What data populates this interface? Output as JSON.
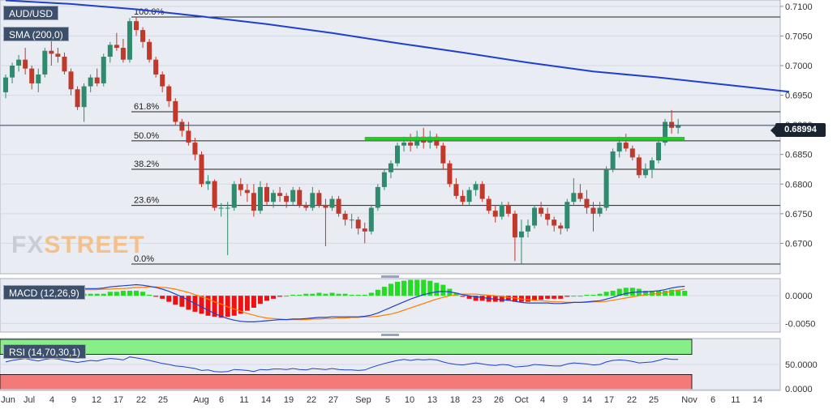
{
  "symbol": "AUD/USD",
  "indicator_label": "SMA (200,0)",
  "macd_label": "MACD (12,26,9)",
  "rsi_label": "RSI (14,70,30,1)",
  "current_price": "0.68994",
  "logo": {
    "prefix": "FX",
    "accent": "STREET"
  },
  "colors": {
    "up": "#2e8b6e",
    "down": "#c0392b",
    "sma": "#1f3fcf",
    "support": "#22cc22",
    "hist_up": "#22dd22",
    "hist_down": "#ee1111",
    "macd": "#1f3fcf",
    "signal": "#ff7f00",
    "rsi": "#1f3fcf",
    "overbought": "#88ee88",
    "oversold": "#f47a7a"
  },
  "chart_data": [
    {
      "type": "candlestick",
      "panel": "price",
      "y_ticks": [
        0.71,
        0.705,
        0.7,
        0.695,
        0.69,
        0.685,
        0.68,
        0.675,
        0.67
      ],
      "y_tick_labels": [
        "0.7100",
        "0.7050",
        "0.7000",
        "0.6950",
        "0.6900",
        "0.6850",
        "0.6800",
        "0.6750",
        "0.6700"
      ],
      "ylim": [
        0.665,
        0.7108
      ],
      "x_tick_labels": [
        "Jun",
        "Jul",
        "4",
        "9",
        "12",
        "17",
        "22",
        "25",
        "Aug",
        "6",
        "11",
        "14",
        "19",
        "22",
        "27",
        "Sep",
        "5",
        "10",
        "13",
        "18",
        "23",
        "26",
        "Oct",
        "4",
        "9",
        "14",
        "17",
        "22",
        "25",
        "Nov",
        "6",
        "11",
        "14"
      ],
      "candles": [
        [
          0.6955,
          0.6985,
          0.6945,
          0.698
        ],
        [
          0.698,
          0.7005,
          0.697,
          0.7
        ],
        [
          0.7,
          0.7018,
          0.699,
          0.701
        ],
        [
          0.701,
          0.703,
          0.6985,
          0.6995
        ],
        [
          0.6995,
          0.7,
          0.696,
          0.697
        ],
        [
          0.697,
          0.6995,
          0.6955,
          0.6985
        ],
        [
          0.6985,
          0.703,
          0.698,
          0.7025
        ],
        [
          0.7025,
          0.705,
          0.7,
          0.702
        ],
        [
          0.702,
          0.703,
          0.7005,
          0.7015
        ],
        [
          0.7015,
          0.7022,
          0.6985,
          0.699
        ],
        [
          0.699,
          0.6995,
          0.695,
          0.696
        ],
        [
          0.696,
          0.6965,
          0.6925,
          0.693
        ],
        [
          0.693,
          0.697,
          0.6905,
          0.6965
        ],
        [
          0.6965,
          0.6985,
          0.6955,
          0.698
        ],
        [
          0.698,
          0.6995,
          0.6965,
          0.697
        ],
        [
          0.697,
          0.702,
          0.6965,
          0.7015
        ],
        [
          0.7015,
          0.704,
          0.7005,
          0.7035
        ],
        [
          0.7035,
          0.7055,
          0.7025,
          0.703
        ],
        [
          0.703,
          0.7045,
          0.7005,
          0.701
        ],
        [
          0.701,
          0.708,
          0.7005,
          0.7075
        ],
        [
          0.7075,
          0.7082,
          0.705,
          0.706
        ],
        [
          0.706,
          0.7065,
          0.703,
          0.704
        ],
        [
          0.704,
          0.7045,
          0.7005,
          0.701
        ],
        [
          0.701,
          0.7015,
          0.698,
          0.6985
        ],
        [
          0.6985,
          0.699,
          0.6955,
          0.6965
        ],
        [
          0.6965,
          0.6968,
          0.693,
          0.694
        ],
        [
          0.694,
          0.6945,
          0.69,
          0.6905
        ],
        [
          0.6905,
          0.691,
          0.688,
          0.689
        ],
        [
          0.689,
          0.6905,
          0.6865,
          0.687
        ],
        [
          0.687,
          0.6878,
          0.684,
          0.685
        ],
        [
          0.685,
          0.6855,
          0.6795,
          0.68
        ],
        [
          0.68,
          0.6815,
          0.679,
          0.6805
        ],
        [
          0.6805,
          0.6808,
          0.6755,
          0.676
        ],
        [
          0.676,
          0.6768,
          0.6745,
          0.676
        ],
        [
          0.676,
          0.677,
          0.668,
          0.676
        ],
        [
          0.676,
          0.6805,
          0.6755,
          0.68
        ],
        [
          0.68,
          0.681,
          0.678,
          0.679
        ],
        [
          0.679,
          0.68,
          0.677,
          0.6785
        ],
        [
          0.6785,
          0.68,
          0.6745,
          0.6755
        ],
        [
          0.6755,
          0.6805,
          0.675,
          0.6795
        ],
        [
          0.6795,
          0.6802,
          0.6765,
          0.677
        ],
        [
          0.677,
          0.679,
          0.676,
          0.6785
        ],
        [
          0.6785,
          0.6795,
          0.677,
          0.678
        ],
        [
          0.678,
          0.6785,
          0.676,
          0.677
        ],
        [
          0.677,
          0.6795,
          0.6765,
          0.679
        ],
        [
          0.679,
          0.6795,
          0.676,
          0.6765
        ],
        [
          0.6765,
          0.677,
          0.6755,
          0.676
        ],
        [
          0.676,
          0.6795,
          0.6755,
          0.6785
        ],
        [
          0.6785,
          0.679,
          0.676,
          0.6765
        ],
        [
          0.6765,
          0.6775,
          0.6695,
          0.676
        ],
        [
          0.676,
          0.678,
          0.6755,
          0.6775
        ],
        [
          0.6775,
          0.678,
          0.6745,
          0.675
        ],
        [
          0.675,
          0.6755,
          0.673,
          0.674
        ],
        [
          0.674,
          0.675,
          0.6725,
          0.674
        ],
        [
          0.674,
          0.6745,
          0.6715,
          0.6725
        ],
        [
          0.6725,
          0.6735,
          0.67,
          0.672
        ],
        [
          0.672,
          0.6765,
          0.6715,
          0.676
        ],
        [
          0.676,
          0.68,
          0.6755,
          0.6795
        ],
        [
          0.6795,
          0.6825,
          0.679,
          0.682
        ],
        [
          0.682,
          0.684,
          0.681,
          0.6835
        ],
        [
          0.6835,
          0.687,
          0.683,
          0.6865
        ],
        [
          0.6865,
          0.688,
          0.6855,
          0.687
        ],
        [
          0.687,
          0.6885,
          0.6855,
          0.6865
        ],
        [
          0.6865,
          0.689,
          0.686,
          0.688
        ],
        [
          0.688,
          0.6895,
          0.686,
          0.687
        ],
        [
          0.687,
          0.689,
          0.686,
          0.688
        ],
        [
          0.688,
          0.6885,
          0.686,
          0.6865
        ],
        [
          0.6865,
          0.687,
          0.6825,
          0.6835
        ],
        [
          0.6835,
          0.684,
          0.6795,
          0.68
        ],
        [
          0.68,
          0.681,
          0.6775,
          0.678
        ],
        [
          0.678,
          0.679,
          0.6765,
          0.677
        ],
        [
          0.677,
          0.6795,
          0.6765,
          0.679
        ],
        [
          0.679,
          0.6805,
          0.678,
          0.68
        ],
        [
          0.68,
          0.6805,
          0.677,
          0.6775
        ],
        [
          0.6775,
          0.678,
          0.675,
          0.6755
        ],
        [
          0.6755,
          0.6765,
          0.6735,
          0.6745
        ],
        [
          0.6745,
          0.677,
          0.674,
          0.6765
        ],
        [
          0.6765,
          0.677,
          0.6745,
          0.675
        ],
        [
          0.675,
          0.6755,
          0.667,
          0.671
        ],
        [
          0.671,
          0.674,
          0.6665,
          0.672
        ],
        [
          0.672,
          0.674,
          0.671,
          0.673
        ],
        [
          0.673,
          0.6765,
          0.6725,
          0.676
        ],
        [
          0.676,
          0.677,
          0.6745,
          0.675
        ],
        [
          0.675,
          0.676,
          0.673,
          0.674
        ],
        [
          0.674,
          0.6745,
          0.672,
          0.673
        ],
        [
          0.673,
          0.6735,
          0.6715,
          0.6725
        ],
        [
          0.6725,
          0.6775,
          0.672,
          0.677
        ],
        [
          0.677,
          0.681,
          0.6765,
          0.6785
        ],
        [
          0.6785,
          0.68,
          0.677,
          0.6775
        ],
        [
          0.6775,
          0.679,
          0.675,
          0.676
        ],
        [
          0.676,
          0.677,
          0.672,
          0.675
        ],
        [
          0.675,
          0.677,
          0.6745,
          0.676
        ],
        [
          0.676,
          0.683,
          0.6755,
          0.6825
        ],
        [
          0.6825,
          0.686,
          0.682,
          0.6855
        ],
        [
          0.6855,
          0.688,
          0.6845,
          0.687
        ],
        [
          0.687,
          0.6885,
          0.6855,
          0.686
        ],
        [
          0.686,
          0.6865,
          0.684,
          0.6845
        ],
        [
          0.6845,
          0.685,
          0.681,
          0.6815
        ],
        [
          0.6815,
          0.6835,
          0.681,
          0.6825
        ],
        [
          0.6825,
          0.6845,
          0.681,
          0.684
        ],
        [
          0.684,
          0.6875,
          0.6835,
          0.687
        ],
        [
          0.687,
          0.691,
          0.6865,
          0.6905
        ],
        [
          0.6905,
          0.6925,
          0.6885,
          0.6895
        ],
        [
          0.6895,
          0.691,
          0.6885,
          0.6899
        ]
      ],
      "sma200": {
        "name": "SMA (200,0)",
        "points": [
          [
            0,
            0.711
          ],
          [
            10,
            0.7104
          ],
          [
            20,
            0.7095
          ],
          [
            30,
            0.7083
          ],
          [
            40,
            0.707
          ],
          [
            50,
            0.7055
          ],
          [
            60,
            0.7038
          ],
          [
            70,
            0.7022
          ],
          [
            80,
            0.7005
          ],
          [
            90,
            0.699
          ],
          [
            100,
            0.698
          ],
          [
            110,
            0.6968
          ],
          [
            115,
            0.6962
          ],
          [
            120,
            0.6956
          ]
        ]
      },
      "fibonacci": [
        {
          "label": "100.0%",
          "value": 0.7082
        },
        {
          "label": "61.8%",
          "value": 0.6922
        },
        {
          "label": "50.0%",
          "value": 0.6873
        },
        {
          "label": "38.2%",
          "value": 0.6825
        },
        {
          "label": "23.6%",
          "value": 0.6764
        },
        {
          "label": "0.0%",
          "value": 0.6665
        }
      ],
      "support_line": {
        "value": 0.6877,
        "from_index": 55,
        "to_index": 104
      }
    },
    {
      "type": "macd",
      "panel": "macd",
      "label": "MACD (12,26,9)",
      "y_ticks": [
        0.0,
        -0.005
      ],
      "y_tick_labels": [
        "0.0000",
        "-0.0050"
      ],
      "ylim": [
        -0.0064,
        0.0028
      ],
      "macd": [
        0.0003,
        0.0005,
        0.0007,
        0.0009,
        0.001,
        0.0011,
        0.0013,
        0.0014,
        0.0015,
        0.0015,
        0.0014,
        0.0013,
        0.0013,
        0.0013,
        0.0013,
        0.0014,
        0.0016,
        0.0017,
        0.0018,
        0.0019,
        0.002,
        0.0019,
        0.0017,
        0.0015,
        0.0012,
        0.0008,
        0.0003,
        -0.0002,
        -0.0008,
        -0.0014,
        -0.002,
        -0.0026,
        -0.0032,
        -0.0037,
        -0.0041,
        -0.0044,
        -0.0046,
        -0.0047,
        -0.0047,
        -0.0046,
        -0.0045,
        -0.0044,
        -0.0043,
        -0.0043,
        -0.0042,
        -0.0042,
        -0.0041,
        -0.004,
        -0.0039,
        -0.0039,
        -0.0038,
        -0.0038,
        -0.0038,
        -0.0038,
        -0.0038,
        -0.0037,
        -0.0035,
        -0.0031,
        -0.0026,
        -0.0021,
        -0.0016,
        -0.0011,
        -0.0006,
        -0.0002,
        0.0002,
        0.0005,
        0.0007,
        0.0008,
        0.0007,
        0.0005,
        0.0002,
        0.0,
        -0.0002,
        -0.0003,
        -0.0005,
        -0.0006,
        -0.0007,
        -0.0008,
        -0.001,
        -0.0012,
        -0.0013,
        -0.0013,
        -0.0013,
        -0.0013,
        -0.0014,
        -0.0014,
        -0.0013,
        -0.0012,
        -0.0012,
        -0.0011,
        -0.001,
        -0.0009,
        -0.0006,
        -0.0003,
        0.0001,
        0.0004,
        0.0006,
        0.0007,
        0.0007,
        0.0008,
        0.0009,
        0.0011,
        0.0014,
        0.0016,
        0.0017
      ],
      "signal": [
        0.0,
        0.0001,
        0.0002,
        0.0003,
        0.0004,
        0.0005,
        0.0006,
        0.0007,
        0.0008,
        0.0009,
        0.001,
        0.001,
        0.0011,
        0.0011,
        0.0011,
        0.0012,
        0.0012,
        0.0013,
        0.0013,
        0.0014,
        0.0015,
        0.0015,
        0.0016,
        0.0016,
        0.0015,
        0.0014,
        0.0012,
        0.0009,
        0.0006,
        0.0002,
        -0.0002,
        -0.0006,
        -0.0011,
        -0.0015,
        -0.002,
        -0.0024,
        -0.0028,
        -0.0032,
        -0.0035,
        -0.0038,
        -0.004,
        -0.0041,
        -0.0042,
        -0.0043,
        -0.0043,
        -0.0043,
        -0.0043,
        -0.0042,
        -0.0042,
        -0.0041,
        -0.0041,
        -0.004,
        -0.004,
        -0.0039,
        -0.0039,
        -0.0038,
        -0.0038,
        -0.0037,
        -0.0035,
        -0.0033,
        -0.003,
        -0.0026,
        -0.0022,
        -0.0018,
        -0.0014,
        -0.001,
        -0.0006,
        -0.0003,
        0.0,
        0.0002,
        0.0003,
        0.0003,
        0.0003,
        0.0002,
        0.0001,
        0.0,
        -0.0001,
        -0.0003,
        -0.0004,
        -0.0006,
        -0.0007,
        -0.0008,
        -0.0009,
        -0.001,
        -0.0011,
        -0.0011,
        -0.0012,
        -0.0012,
        -0.0012,
        -0.0012,
        -0.0011,
        -0.0011,
        -0.001,
        -0.0008,
        -0.0006,
        -0.0004,
        -0.0002,
        0.0,
        0.0002,
        0.0003,
        0.0004,
        0.0006,
        0.0008,
        0.001,
        0.0012
      ]
    },
    {
      "type": "rsi",
      "panel": "rsi",
      "label": "RSI (14,70,30,1)",
      "y_ticks": [
        50,
        0
      ],
      "y_tick_labels": [
        "50.0000",
        "0.0000"
      ],
      "ylim": [
        0,
        100
      ],
      "overbought": 70,
      "oversold": 30,
      "rsi": [
        55,
        58,
        60,
        62,
        59,
        57,
        60,
        62,
        61,
        58,
        56,
        54,
        56,
        58,
        57,
        60,
        62,
        61,
        59,
        65,
        63,
        61,
        58,
        55,
        52,
        50,
        47,
        46,
        44,
        42,
        38,
        39,
        36,
        35,
        36,
        40,
        39,
        38,
        36,
        40,
        39,
        41,
        41,
        40,
        42,
        40,
        39,
        42,
        41,
        40,
        42,
        40,
        39,
        39,
        38,
        39,
        44,
        48,
        52,
        55,
        58,
        60,
        58,
        60,
        59,
        60,
        59,
        55,
        52,
        50,
        49,
        51,
        53,
        51,
        49,
        48,
        50,
        49,
        45,
        46,
        47,
        50,
        49,
        48,
        47,
        47,
        51,
        53,
        52,
        51,
        49,
        50,
        55,
        58,
        59,
        58,
        56,
        53,
        54,
        55,
        58,
        62,
        60,
        60
      ]
    }
  ]
}
